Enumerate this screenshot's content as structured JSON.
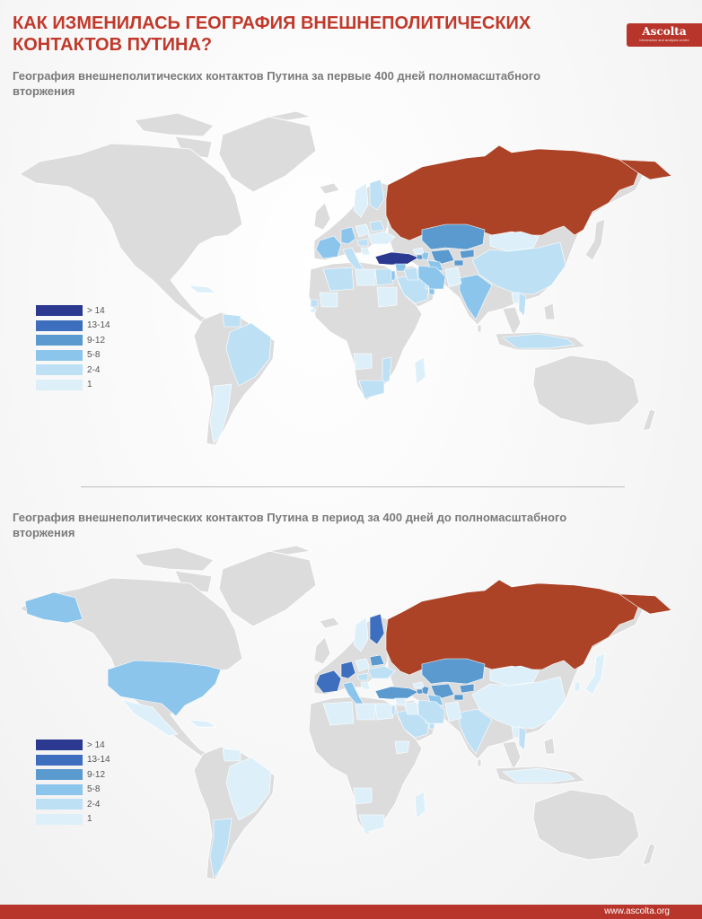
{
  "header": {
    "title": "КАК ИЗМЕНИЛАСЬ ГЕОГРАФИЯ ВНЕШНЕПОЛИТИЧЕСКИХ КОНТАКТОВ ПУТИНА?",
    "logo_text": "Ascolta",
    "logo_tagline": "information and analysis centre"
  },
  "colors": {
    "land": "#dcdcdc",
    "russia": "#ac4226",
    "scale": [
      "#2b3990",
      "#3d6fbe",
      "#5b9acf",
      "#8cc5ec",
      "#bde0f5",
      "#ddf0fa"
    ]
  },
  "legend": {
    "labels": [
      "> 14",
      "13-14",
      "9-12",
      "5-8",
      "2-4",
      "1"
    ]
  },
  "maps": [
    {
      "title": "География внешнеполитических контактов Путина за первые 400 дней полномасштабного вторжения",
      "countries": {
        "turkey": 0,
        "france": 3,
        "germany": 3,
        "italy": 4,
        "kazakhstan": 2,
        "uzbekistan": 2,
        "kyrgyzstan": 2,
        "tajikistan": 2,
        "turkmenistan": 3,
        "iran": 3,
        "azerbaijan": 3,
        "armenia": 2,
        "georgia": 5,
        "belarus": 4,
        "ukraine": 5,
        "poland": 5,
        "finland": 4,
        "sweden": 5,
        "hungary": 4,
        "serbia": 5,
        "saudi_arabia": 4,
        "uae": 3,
        "qatar": 4,
        "egypt": 4,
        "israel": 3,
        "syria": 3,
        "iraq": 4,
        "algeria": 4,
        "india": 3,
        "china": 4,
        "mongolia": 5,
        "pakistan": 5,
        "vietnam": 4,
        "indonesia": 4,
        "laos": 5,
        "brazil": 4,
        "argentina": 5,
        "venezuela": 4,
        "cuba": 5,
        "libya": 5,
        "senegal": 4,
        "sudan": 5,
        "mali": 5,
        "guinea_bissau": 5,
        "angola": 5,
        "mozambique": 4,
        "south_africa": 4,
        "madagascar": 5
      }
    },
    {
      "title": "География внешнеполитических контактов Путина в период за 400 дней до полномасштабного вторжения",
      "countries": {
        "france": 1,
        "germany": 1,
        "italy": 3,
        "turkey": 2,
        "finland": 1,
        "kazakhstan": 2,
        "uzbekistan": 2,
        "kyrgyzstan": 2,
        "tajikistan": 2,
        "turkmenistan": 3,
        "azerbaijan": 2,
        "armenia": 2,
        "georgia": 5,
        "belarus": 2,
        "ukraine": 4,
        "poland": 5,
        "sweden": 5,
        "hungary": 4,
        "serbia": 5,
        "usa": 3,
        "alaska": 3,
        "canada_none": -1,
        "mexico": 5,
        "cuba": 5,
        "brazil": 5,
        "argentina": 4,
        "venezuela": 5,
        "saudi_arabia": 4,
        "uae": 4,
        "qatar": 4,
        "egypt": 5,
        "israel": 4,
        "iran": 4,
        "iraq": 5,
        "syria": 5,
        "algeria": 5,
        "india": 4,
        "china": 5,
        "mongolia": 5,
        "pakistan": 5,
        "vietnam": 4,
        "indonesia": 5,
        "laos": 5,
        "japan": 5,
        "south_korea": 5,
        "south_africa": 5,
        "libya": 5,
        "ethiopia": 5,
        "angola": 5,
        "madagascar": 5
      }
    }
  ],
  "footer": {
    "url": "www.ascolta.org"
  }
}
